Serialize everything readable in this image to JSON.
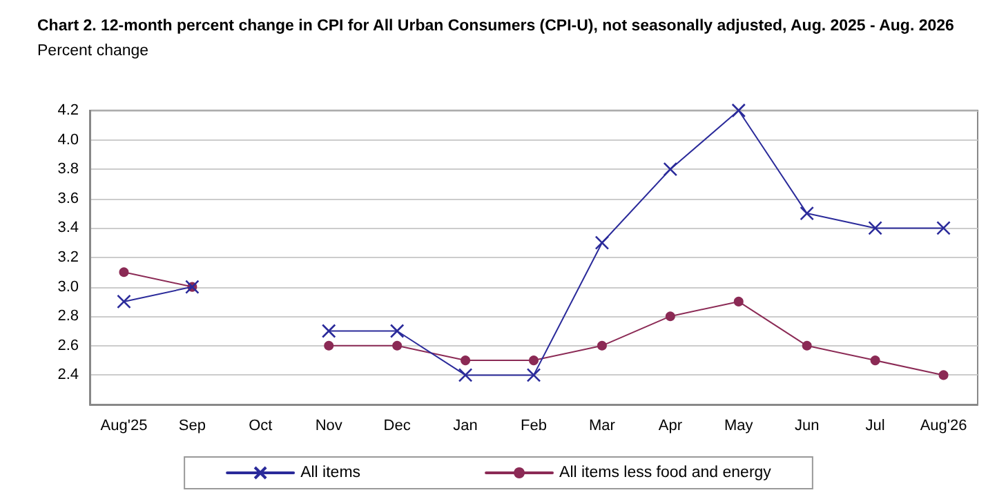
{
  "chart_data": {
    "type": "line",
    "title": "Chart 2. 12-month percent change in CPI for All Urban Consumers (CPI-U), not seasonally adjusted, Aug. 2025 - Aug. 2026",
    "ylabel": "Percent change",
    "categories": [
      "Aug'25",
      "Sep",
      "Oct",
      "Nov",
      "Dec",
      "Jan",
      "Feb",
      "Mar",
      "Apr",
      "May",
      "Jun",
      "Jul",
      "Aug'26"
    ],
    "series": [
      {
        "name": "All items",
        "color": "#2a2a9a",
        "marker": "cross",
        "values": [
          2.9,
          3.0,
          null,
          2.7,
          2.7,
          2.4,
          2.4,
          3.3,
          3.8,
          4.2,
          3.5,
          3.4,
          3.4
        ]
      },
      {
        "name": "All items less food and energy",
        "color": "#8b2a55",
        "marker": "circle",
        "values": [
          3.1,
          3.0,
          null,
          2.6,
          2.6,
          2.5,
          2.5,
          2.6,
          2.8,
          2.9,
          2.6,
          2.5,
          2.4
        ]
      }
    ],
    "ylim": [
      2.2,
      4.2
    ],
    "yticks": [
      2.4,
      2.6,
      2.8,
      {
        "value": 3,
        "label": "3.0"
      },
      3.2,
      3.4,
      3.6,
      3.8,
      {
        "value": 4,
        "label": "4.0"
      },
      4.2
    ],
    "grid": "y",
    "legend": "bottom",
    "line_style": "solid"
  }
}
